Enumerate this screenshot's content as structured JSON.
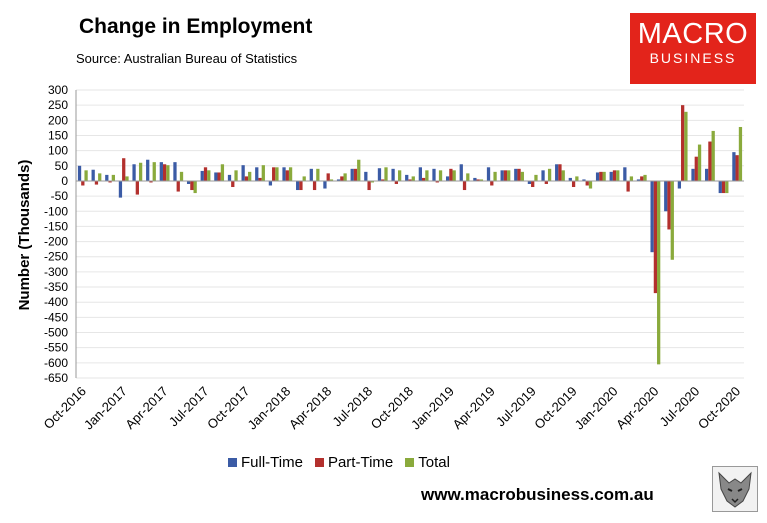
{
  "header": {
    "title": "Change in Employment",
    "source": "Source: Australian Bureau of Statistics"
  },
  "logo": {
    "line1": "MACRO",
    "line2": "BUSINESS",
    "color": "#e3241b"
  },
  "footer": {
    "website": "www.macrobusiness.com.au"
  },
  "colors": {
    "full_time": "#3b5ba5",
    "part_time": "#b3302d",
    "total": "#8aaa3c"
  },
  "chart_data": {
    "type": "bar",
    "ylabel": "Number (Thousands)",
    "ylim": [
      -650,
      300
    ],
    "yticks": [
      300,
      250,
      200,
      150,
      100,
      50,
      0,
      -50,
      -100,
      -150,
      -200,
      -250,
      -300,
      -350,
      -400,
      -450,
      -500,
      -550,
      -600,
      -650
    ],
    "xtick_labels": [
      "Oct-2016",
      "Jan-2017",
      "Apr-2017",
      "Jul-2017",
      "Oct-2017",
      "Jan-2018",
      "Apr-2018",
      "Jul-2018",
      "Oct-2018",
      "Jan-2019",
      "Apr-2019",
      "Jul-2019",
      "Oct-2019",
      "Jan-2020",
      "Apr-2020",
      "Jul-2020",
      "Oct-2020"
    ],
    "categories": [
      "Oct-2016",
      "Nov-2016",
      "Dec-2016",
      "Jan-2017",
      "Feb-2017",
      "Mar-2017",
      "Apr-2017",
      "May-2017",
      "Jun-2017",
      "Jul-2017",
      "Aug-2017",
      "Sep-2017",
      "Oct-2017",
      "Nov-2017",
      "Dec-2017",
      "Jan-2018",
      "Feb-2018",
      "Mar-2018",
      "Apr-2018",
      "May-2018",
      "Jun-2018",
      "Jul-2018",
      "Aug-2018",
      "Sep-2018",
      "Oct-2018",
      "Nov-2018",
      "Dec-2018",
      "Jan-2019",
      "Feb-2019",
      "Mar-2019",
      "Apr-2019",
      "May-2019",
      "Jun-2019",
      "Jul-2019",
      "Aug-2019",
      "Sep-2019",
      "Oct-2019",
      "Nov-2019",
      "Dec-2019",
      "Jan-2020",
      "Feb-2020",
      "Mar-2020",
      "Apr-2020",
      "May-2020",
      "Jun-2020",
      "Jul-2020",
      "Aug-2020",
      "Sep-2020",
      "Oct-2020"
    ],
    "series": [
      {
        "name": "Full-Time",
        "values": [
          50,
          37,
          20,
          -55,
          55,
          70,
          62,
          62,
          -10,
          33,
          28,
          20,
          52,
          45,
          -15,
          45,
          -30,
          40,
          -25,
          5,
          40,
          30,
          42,
          40,
          20,
          45,
          40,
          15,
          55,
          10,
          45,
          35,
          40,
          -10,
          35,
          55,
          10,
          5,
          28,
          30,
          45,
          5,
          -235,
          -100,
          -25,
          40,
          40,
          -40,
          95
        ]
      },
      {
        "name": "Part-Time",
        "values": [
          -15,
          -12,
          -5,
          75,
          -45,
          -5,
          55,
          -35,
          -30,
          45,
          28,
          -20,
          15,
          10,
          45,
          35,
          -30,
          -30,
          25,
          15,
          40,
          -30,
          5,
          -10,
          5,
          10,
          -5,
          40,
          -30,
          5,
          -15,
          35,
          40,
          -20,
          -10,
          55,
          -20,
          -15,
          30,
          35,
          -35,
          15,
          -370,
          -160,
          250,
          80,
          130,
          -40,
          85
        ]
      },
      {
        "name": "Total",
        "values": [
          35,
          25,
          20,
          15,
          60,
          62,
          52,
          30,
          -40,
          35,
          55,
          35,
          30,
          52,
          45,
          45,
          15,
          40,
          5,
          25,
          70,
          -5,
          45,
          35,
          15,
          35,
          35,
          35,
          25,
          5,
          30,
          35,
          30,
          20,
          40,
          35,
          15,
          -25,
          30,
          35,
          15,
          20,
          -605,
          -260,
          228,
          120,
          165,
          -40,
          178
        ]
      }
    ]
  }
}
